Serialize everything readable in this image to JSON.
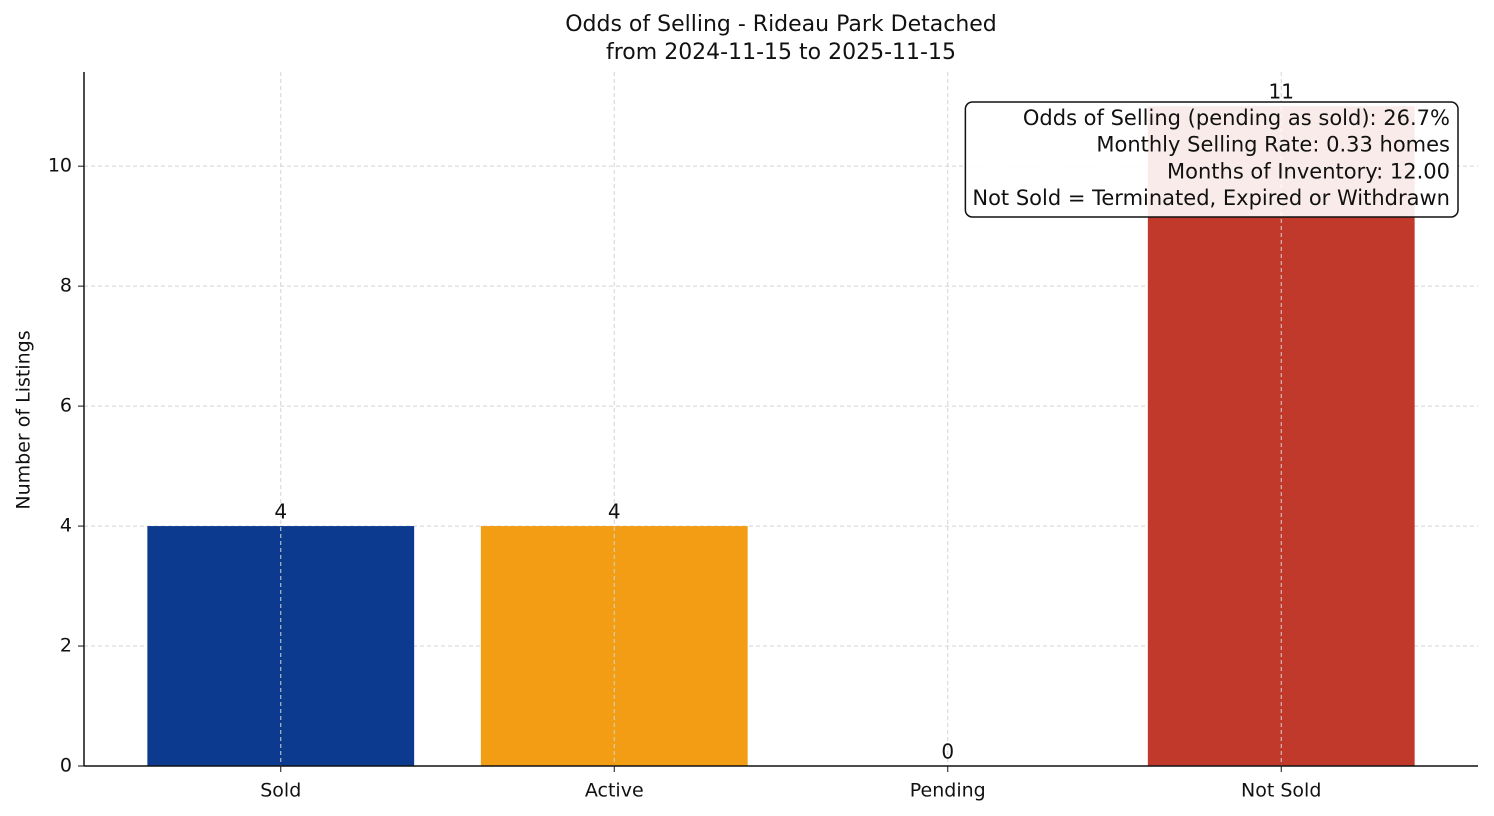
{
  "chart_data": {
    "type": "bar",
    "title": "Odds of Selling - Rideau Park Detached",
    "subtitle": "from 2024-11-15 to 2025-11-15",
    "y_label": "Number of Listings",
    "categories": [
      "Sold",
      "Active",
      "Pending",
      "Not Sold"
    ],
    "values": [
      4,
      4,
      0,
      11
    ],
    "colors": [
      "#0b3a8f",
      "#f29d14",
      "#2e8b57",
      "#c0392b"
    ],
    "ylim": [
      0,
      11.57
    ],
    "yticks": [
      0,
      2,
      4,
      6,
      8,
      10
    ],
    "grid": true,
    "annotation": [
      "Odds of Selling (pending as sold): 26.7%",
      "Monthly Selling Rate: 0.33 homes",
      "Months of Inventory: 12.00",
      "Not Sold = Terminated, Expired or Withdrawn"
    ]
  }
}
